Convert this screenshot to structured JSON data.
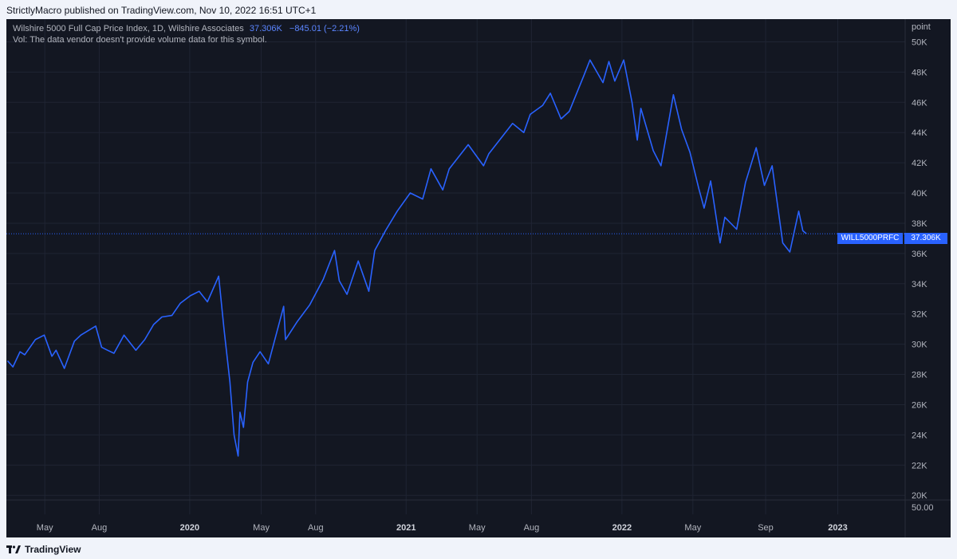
{
  "header": {
    "published": "StrictlyMacro published on TradingView.com, Nov 10, 2022 16:51 UTC+1"
  },
  "legend": {
    "title": "Wilshire 5000 Full Cap Price Index, 1D, Wilshire Associates",
    "last_value": "37.306K",
    "change": "−845.01 (−2.21%)",
    "volume_note": "Vol: The data vendor doesn't provide volume data for this symbol."
  },
  "price_tag": {
    "symbol": "WILL5000PRFC",
    "value": "37.306K"
  },
  "footer": {
    "brand": "TradingView"
  },
  "colors": {
    "background": "#131722",
    "line": "#2962ff",
    "grid": "#1f2433",
    "axis_text": "#b2b5be"
  },
  "chart_data": {
    "type": "line",
    "title": "Wilshire 5000 Full Cap Price Index, 1D, Wilshire Associates",
    "ylabel": "point",
    "ylim": [
      19800,
      51500
    ],
    "xlim": [
      "2019-02-25",
      "2023-04-25"
    ],
    "grid": true,
    "y_ticks": [
      20000,
      22000,
      24000,
      26000,
      28000,
      30000,
      32000,
      34000,
      36000,
      38000,
      40000,
      42000,
      44000,
      46000,
      48000,
      50000
    ],
    "y_tick_labels": [
      "20K",
      "22K",
      "24K",
      "26K",
      "28K",
      "30K",
      "32K",
      "34K",
      "36K",
      "38K",
      "40K",
      "42K",
      "44K",
      "46K",
      "48K",
      "50K"
    ],
    "x_ticks": [
      {
        "date": "2019-05-01",
        "label": "May"
      },
      {
        "date": "2019-08-01",
        "label": "Aug"
      },
      {
        "date": "2020-01-01",
        "label": "2020"
      },
      {
        "date": "2020-05-01",
        "label": "May"
      },
      {
        "date": "2020-08-01",
        "label": "Aug"
      },
      {
        "date": "2021-01-01",
        "label": "2021"
      },
      {
        "date": "2021-05-01",
        "label": "May"
      },
      {
        "date": "2021-08-01",
        "label": "Aug"
      },
      {
        "date": "2022-01-01",
        "label": "2022"
      },
      {
        "date": "2022-05-01",
        "label": "May"
      },
      {
        "date": "2022-09-01",
        "label": "Sep"
      },
      {
        "date": "2023-01-01",
        "label": "2023"
      }
    ],
    "volume_pane_label": "50.00",
    "last_value": 37306,
    "series": [
      {
        "values": [
          [
            "2019-02-27",
            28900
          ],
          [
            "2019-03-08",
            28500
          ],
          [
            "2019-03-20",
            29500
          ],
          [
            "2019-03-28",
            29300
          ],
          [
            "2019-04-15",
            30300
          ],
          [
            "2019-04-30",
            30600
          ],
          [
            "2019-05-13",
            29200
          ],
          [
            "2019-05-20",
            29600
          ],
          [
            "2019-06-03",
            28400
          ],
          [
            "2019-06-20",
            30200
          ],
          [
            "2019-07-01",
            30600
          ],
          [
            "2019-07-26",
            31200
          ],
          [
            "2019-08-05",
            29800
          ],
          [
            "2019-08-15",
            29600
          ],
          [
            "2019-08-26",
            29400
          ],
          [
            "2019-09-12",
            30600
          ],
          [
            "2019-10-02",
            29600
          ],
          [
            "2019-10-17",
            30300
          ],
          [
            "2019-11-01",
            31300
          ],
          [
            "2019-11-15",
            31800
          ],
          [
            "2019-12-02",
            31900
          ],
          [
            "2019-12-16",
            32700
          ],
          [
            "2020-01-02",
            33200
          ],
          [
            "2020-01-17",
            33500
          ],
          [
            "2020-01-31",
            32800
          ],
          [
            "2020-02-19",
            34500
          ],
          [
            "2020-02-28",
            31000
          ],
          [
            "2020-03-09",
            27500
          ],
          [
            "2020-03-16",
            24000
          ],
          [
            "2020-03-23",
            22600
          ],
          [
            "2020-03-26",
            25500
          ],
          [
            "2020-04-01",
            24500
          ],
          [
            "2020-04-08",
            27500
          ],
          [
            "2020-04-17",
            28800
          ],
          [
            "2020-04-29",
            29500
          ],
          [
            "2020-05-13",
            28700
          ],
          [
            "2020-06-08",
            32500
          ],
          [
            "2020-06-11",
            30300
          ],
          [
            "2020-07-01",
            31500
          ],
          [
            "2020-07-22",
            32600
          ],
          [
            "2020-08-14",
            34300
          ],
          [
            "2020-09-02",
            36200
          ],
          [
            "2020-09-10",
            34200
          ],
          [
            "2020-09-23",
            33300
          ],
          [
            "2020-10-12",
            35500
          ],
          [
            "2020-10-30",
            33500
          ],
          [
            "2020-11-09",
            36200
          ],
          [
            "2020-11-27",
            37500
          ],
          [
            "2020-12-17",
            38800
          ],
          [
            "2021-01-08",
            40000
          ],
          [
            "2021-01-29",
            39600
          ],
          [
            "2021-02-12",
            41600
          ],
          [
            "2021-03-04",
            40200
          ],
          [
            "2021-03-15",
            41600
          ],
          [
            "2021-04-16",
            43200
          ],
          [
            "2021-05-12",
            41800
          ],
          [
            "2021-05-21",
            42600
          ],
          [
            "2021-06-14",
            43800
          ],
          [
            "2021-06-30",
            44600
          ],
          [
            "2021-07-19",
            44000
          ],
          [
            "2021-07-30",
            45200
          ],
          [
            "2021-08-20",
            45800
          ],
          [
            "2021-09-02",
            46600
          ],
          [
            "2021-09-20",
            44900
          ],
          [
            "2021-10-04",
            45400
          ],
          [
            "2021-10-29",
            47800
          ],
          [
            "2021-11-08",
            48800
          ],
          [
            "2021-11-30",
            47300
          ],
          [
            "2021-12-10",
            48700
          ],
          [
            "2021-12-20",
            47400
          ],
          [
            "2022-01-04",
            48800
          ],
          [
            "2022-01-18",
            46000
          ],
          [
            "2022-01-27",
            43500
          ],
          [
            "2022-02-02",
            45600
          ],
          [
            "2022-02-23",
            42800
          ],
          [
            "2022-03-08",
            41800
          ],
          [
            "2022-03-29",
            46500
          ],
          [
            "2022-04-12",
            44200
          ],
          [
            "2022-04-26",
            42700
          ],
          [
            "2022-05-11",
            40300
          ],
          [
            "2022-05-20",
            39000
          ],
          [
            "2022-05-31",
            40800
          ],
          [
            "2022-06-16",
            36700
          ],
          [
            "2022-06-24",
            38400
          ],
          [
            "2022-07-14",
            37600
          ],
          [
            "2022-07-29",
            40700
          ],
          [
            "2022-08-16",
            43000
          ],
          [
            "2022-08-30",
            40500
          ],
          [
            "2022-09-12",
            41800
          ],
          [
            "2022-09-30",
            36700
          ],
          [
            "2022-10-12",
            36100
          ],
          [
            "2022-10-27",
            38800
          ],
          [
            "2022-11-03",
            37500
          ],
          [
            "2022-11-09",
            37306
          ]
        ]
      }
    ]
  }
}
